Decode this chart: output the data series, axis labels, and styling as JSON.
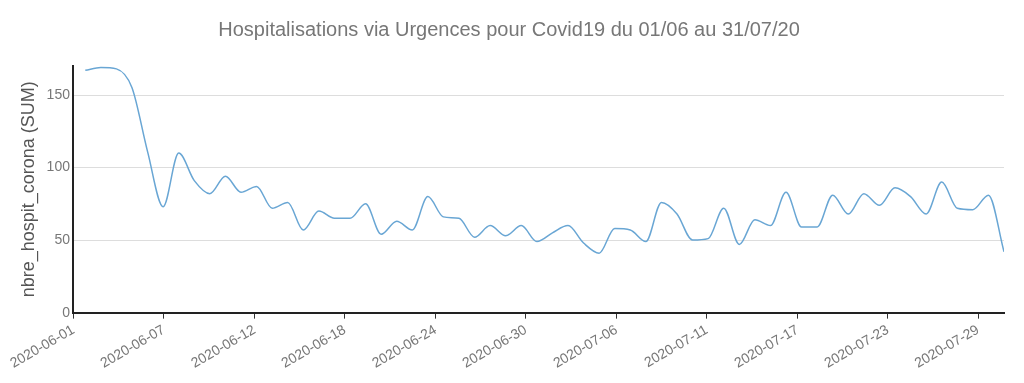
{
  "chart_data": {
    "type": "line",
    "title": "Hospitalisations via Urgences pour Covid19 du 01/06 au 31/07/20",
    "ylabel": "nbre_hospit_corona (SUM)",
    "x": [
      "2020-06-02",
      "2020-06-03",
      "2020-06-04",
      "2020-06-05",
      "2020-06-06",
      "2020-06-07",
      "2020-06-08",
      "2020-06-09",
      "2020-06-10",
      "2020-06-11",
      "2020-06-12",
      "2020-06-13",
      "2020-06-14",
      "2020-06-15",
      "2020-06-16",
      "2020-06-17",
      "2020-06-18",
      "2020-06-19",
      "2020-06-20",
      "2020-06-21",
      "2020-06-22",
      "2020-06-23",
      "2020-06-24",
      "2020-06-25",
      "2020-06-26",
      "2020-06-27",
      "2020-06-28",
      "2020-06-29",
      "2020-06-30",
      "2020-07-01",
      "2020-07-02",
      "2020-07-03",
      "2020-07-04",
      "2020-07-05",
      "2020-07-06",
      "2020-07-07",
      "2020-07-08",
      "2020-07-09",
      "2020-07-10",
      "2020-07-11",
      "2020-07-12",
      "2020-07-13",
      "2020-07-14",
      "2020-07-15",
      "2020-07-16",
      "2020-07-17",
      "2020-07-18",
      "2020-07-19",
      "2020-07-20",
      "2020-07-21",
      "2020-07-22",
      "2020-07-23",
      "2020-07-24",
      "2020-07-25",
      "2020-07-26",
      "2020-07-27",
      "2020-07-28",
      "2020-07-29",
      "2020-07-30",
      "2020-07-31"
    ],
    "series": [
      {
        "color": "#69a6d4",
        "values": [
          167,
          169,
          168,
          155,
          111,
          73,
          110,
          91,
          82,
          94,
          83,
          87,
          72,
          76,
          57,
          70,
          65,
          65,
          75,
          54,
          63,
          57,
          80,
          66,
          65,
          52,
          60,
          53,
          60,
          49,
          55,
          60,
          48,
          41,
          58,
          57,
          49,
          76,
          68,
          50,
          51,
          72,
          47,
          64,
          60,
          83,
          59,
          59,
          81,
          68,
          82,
          74,
          86,
          80,
          68,
          90,
          72,
          71,
          81,
          42
        ]
      }
    ],
    "xlim": [
      "2020-06-01T05:00",
      "2020-07-31T00:00"
    ],
    "xticks": [
      {
        "value": "2020-06-01T06:00",
        "label": "2020-06-01"
      },
      {
        "value": "2020-06-07T01:00",
        "label": "2020-06-07"
      },
      {
        "value": "2020-06-12T21:00",
        "label": "2020-06-12"
      },
      {
        "value": "2020-06-18T16:00",
        "label": "2020-06-18"
      },
      {
        "value": "2020-06-24T12:00",
        "label": "2020-06-24"
      },
      {
        "value": "2020-06-30T07:00",
        "label": "2020-06-30"
      },
      {
        "value": "2020-07-06T03:00",
        "label": "2020-07-06"
      },
      {
        "value": "2020-07-11T22:00",
        "label": "2020-07-11"
      },
      {
        "value": "2020-07-17T18:00",
        "label": "2020-07-17"
      },
      {
        "value": "2020-07-23T13:00",
        "label": "2020-07-23"
      },
      {
        "value": "2020-07-29T08:00",
        "label": "2020-07-29"
      }
    ],
    "ylim": [
      0,
      170
    ],
    "yticks": [
      0,
      50,
      100,
      150
    ],
    "grid": "y",
    "legend": false,
    "marker": "none",
    "line_style": "solid"
  }
}
